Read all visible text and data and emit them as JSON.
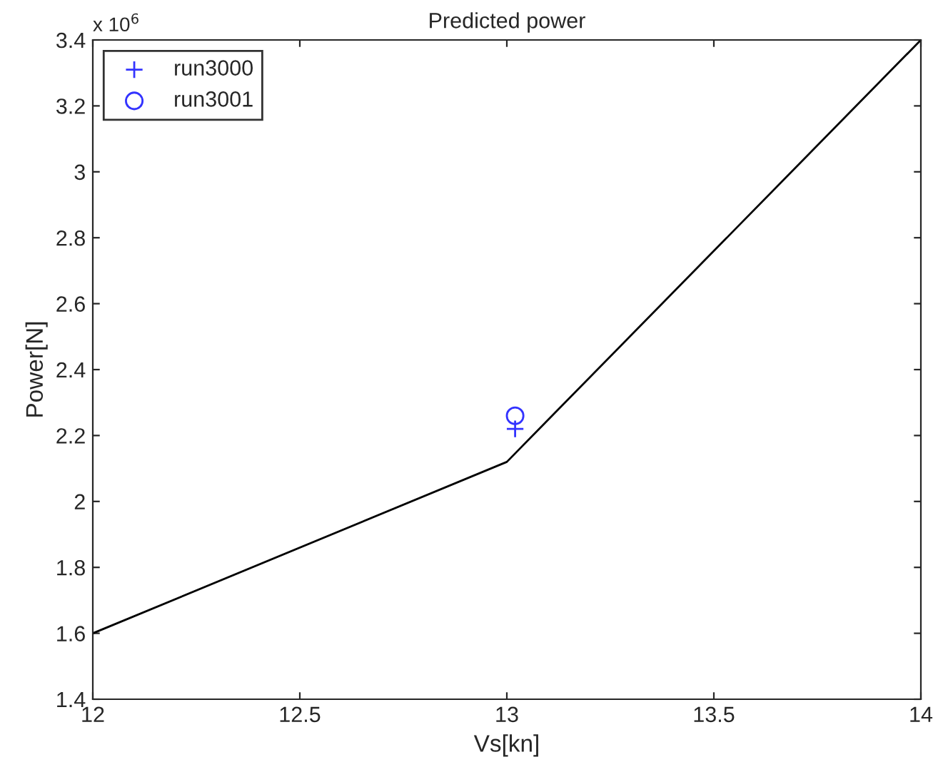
{
  "chart_data": {
    "type": "line",
    "title": "Predicted power",
    "xlabel": "Vs[kn]",
    "ylabel": "Power[N]",
    "annotations": [
      "x 10$^{6}$"
    ],
    "series": [
      {
        "name": "run3000",
        "type": "scatter",
        "marker": "cross",
        "color": "#3333ff",
        "x": [
          13.02
        ],
        "values": [
          2.22
        ]
      },
      {
        "name": "run3001",
        "type": "scatter",
        "marker": "circle",
        "color": "#3333ff",
        "x": [
          13.02
        ],
        "values": [
          2.26
        ]
      },
      {
        "color": "#000000",
        "x": [
          12,
          13,
          14
        ],
        "values": [
          1.6,
          2.12,
          3.4
        ]
      }
    ],
    "xlim": [
      12,
      14
    ],
    "xticks": [
      12,
      12.5,
      13,
      13.5,
      14
    ],
    "ylim": [
      1.4,
      3.4
    ],
    "yticks": [
      1.4,
      1.6,
      1.8,
      2,
      2.2,
      2.4,
      2.6,
      2.8,
      3,
      3.2,
      3.4
    ],
    "grid": false,
    "legend": "top left"
  }
}
